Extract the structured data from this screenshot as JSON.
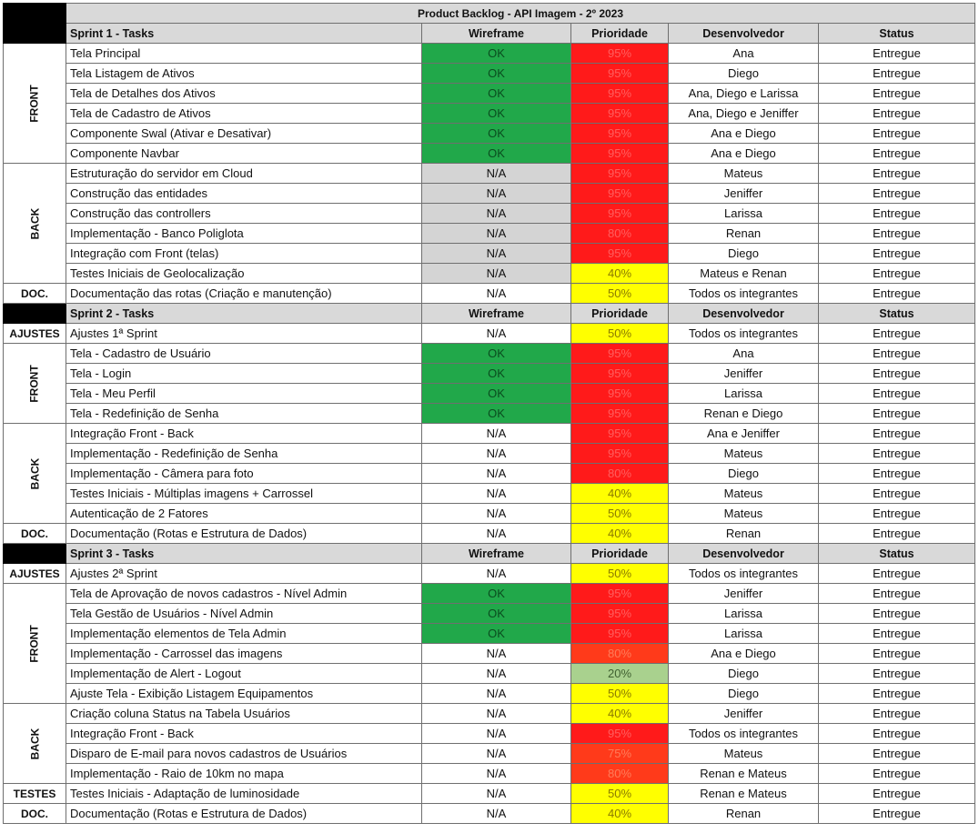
{
  "title": "Product Backlog - API Imagem - 2º 2023",
  "columns": {
    "wireframe": "Wireframe",
    "prioridade": "Prioridade",
    "desenvolvedor": "Desenvolvedor",
    "status": "Status"
  },
  "colors": {
    "ok_green": "#21a84a",
    "na_gray": "#d4d4d4",
    "priority_red": "#ff1a1a",
    "priority_orange": "#ff3a1a",
    "priority_yellow": "#ffff00",
    "priority_lightgreen": "#a9d18e"
  },
  "sprints": [
    {
      "label": "Sprint 1 - Tasks",
      "sections": [
        {
          "name": "FRONT",
          "rows": [
            {
              "task": "Tela Principal",
              "wireframe": "OK",
              "prioridade": "95%",
              "desenvolvedor": "Ana",
              "status": "Entregue"
            },
            {
              "task": "Tela Listagem de Ativos",
              "wireframe": "OK",
              "prioridade": "95%",
              "desenvolvedor": "Diego",
              "status": "Entregue"
            },
            {
              "task": "Tela de Detalhes dos Ativos",
              "wireframe": "OK",
              "prioridade": "95%",
              "desenvolvedor": "Ana, Diego e Larissa",
              "status": "Entregue"
            },
            {
              "task": "Tela de Cadastro de Ativos",
              "wireframe": "OK",
              "prioridade": "95%",
              "desenvolvedor": "Ana, Diego e Jeniffer",
              "status": "Entregue"
            },
            {
              "task": "Componente Swal (Ativar e Desativar)",
              "wireframe": "OK",
              "prioridade": "95%",
              "desenvolvedor": "Ana e Diego",
              "status": "Entregue"
            },
            {
              "task": "Componente Navbar",
              "wireframe": "OK",
              "prioridade": "95%",
              "desenvolvedor": "Ana e Diego",
              "status": "Entregue"
            }
          ]
        },
        {
          "name": "BACK",
          "rows": [
            {
              "task": "Estruturação do servidor em Cloud",
              "wireframe": "N/A",
              "prioridade": "95%",
              "desenvolvedor": "Mateus",
              "status": "Entregue"
            },
            {
              "task": "Construção das entidades",
              "wireframe": "N/A",
              "prioridade": "95%",
              "desenvolvedor": "Jeniffer",
              "status": "Entregue"
            },
            {
              "task": "Construção das controllers",
              "wireframe": "N/A",
              "prioridade": "95%",
              "desenvolvedor": "Larissa",
              "status": "Entregue"
            },
            {
              "task": "Implementação - Banco Poliglota",
              "wireframe": "N/A",
              "prioridade": "80%",
              "desenvolvedor": "Renan",
              "status": "Entregue"
            },
            {
              "task": "Integração com Front (telas)",
              "wireframe": "N/A",
              "prioridade": "95%",
              "desenvolvedor": "Diego",
              "status": "Entregue"
            },
            {
              "task": "Testes Iniciais de Geolocalização",
              "wireframe": "N/A",
              "prioridade": "40%",
              "desenvolvedor": "Mateus e Renan",
              "status": "Entregue"
            }
          ]
        },
        {
          "name": "DOC.",
          "rows": [
            {
              "task": "Documentação das rotas (Criação e manutenção)",
              "wireframe": "N/A",
              "prioridade": "50%",
              "desenvolvedor": "Todos os integrantes",
              "status": "Entregue"
            }
          ]
        }
      ]
    },
    {
      "label": "Sprint 2 - Tasks",
      "sections": [
        {
          "name": "AJUSTES",
          "rows": [
            {
              "task": "Ajustes 1ª Sprint",
              "wireframe": "N/A",
              "prioridade": "50%",
              "desenvolvedor": "Todos os integrantes",
              "status": "Entregue"
            }
          ]
        },
        {
          "name": "FRONT",
          "rows": [
            {
              "task": "Tela - Cadastro de Usuário",
              "wireframe": "OK",
              "prioridade": "95%",
              "desenvolvedor": "Ana",
              "status": "Entregue"
            },
            {
              "task": "Tela - Login",
              "wireframe": "OK",
              "prioridade": "95%",
              "desenvolvedor": "Jeniffer",
              "status": "Entregue"
            },
            {
              "task": "Tela - Meu Perfil",
              "wireframe": "OK",
              "prioridade": "95%",
              "desenvolvedor": "Larissa",
              "status": "Entregue"
            },
            {
              "task": "Tela - Redefinição de Senha",
              "wireframe": "OK",
              "prioridade": "95%",
              "desenvolvedor": "Renan e Diego",
              "status": "Entregue"
            }
          ]
        },
        {
          "name": "BACK",
          "rows": [
            {
              "task": "Integração Front  - Back",
              "wireframe": "N/A",
              "prioridade": "95%",
              "desenvolvedor": "Ana e Jeniffer",
              "status": "Entregue"
            },
            {
              "task": "Implementação - Redefinição de Senha",
              "wireframe": "N/A",
              "prioridade": "95%",
              "desenvolvedor": "Mateus",
              "status": "Entregue"
            },
            {
              "task": "Implementação - Câmera para foto",
              "wireframe": "N/A",
              "prioridade": "80%",
              "desenvolvedor": "Diego",
              "status": "Entregue"
            },
            {
              "task": "Testes Iniciais  - Múltiplas imagens + Carrossel",
              "wireframe": "N/A",
              "prioridade": "40%",
              "desenvolvedor": "Mateus",
              "status": "Entregue"
            },
            {
              "task": "Autenticação de 2 Fatores",
              "wireframe": "N/A",
              "prioridade": "50%",
              "desenvolvedor": "Mateus",
              "status": "Entregue"
            }
          ]
        },
        {
          "name": "DOC.",
          "rows": [
            {
              "task": "Documentação (Rotas e Estrutura de Dados)",
              "wireframe": "N/A",
              "prioridade": "40%",
              "desenvolvedor": "Renan",
              "status": "Entregue"
            }
          ]
        }
      ]
    },
    {
      "label": "Sprint 3 - Tasks",
      "sections": [
        {
          "name": "AJUSTES",
          "rows": [
            {
              "task": "Ajustes 2ª Sprint",
              "wireframe": "N/A",
              "prioridade": "50%",
              "desenvolvedor": "Todos os integrantes",
              "status": "Entregue"
            }
          ]
        },
        {
          "name": "FRONT",
          "rows": [
            {
              "task": "Tela de Aprovação de novos cadastros - Nível Admin",
              "wireframe": "OK",
              "prioridade": "95%",
              "desenvolvedor": "Jeniffer",
              "status": "Entregue"
            },
            {
              "task": "Tela Gestão de Usuários - Nível Admin",
              "wireframe": "OK",
              "prioridade": "95%",
              "desenvolvedor": "Larissa",
              "status": "Entregue"
            },
            {
              "task": "Implementação elementos de Tela Admin",
              "wireframe": "OK",
              "prioridade": "95%",
              "desenvolvedor": "Larissa",
              "status": "Entregue"
            },
            {
              "task": "Implementação - Carrossel das imagens",
              "wireframe": "N/A",
              "prioridade": "80%",
              "desenvolvedor": "Ana e Diego",
              "status": "Entregue"
            },
            {
              "task": "Implementação de Alert - Logout",
              "wireframe": "N/A",
              "prioridade": "20%",
              "desenvolvedor": "Diego",
              "status": "Entregue"
            },
            {
              "task": "Ajuste Tela - Exibição Listagem Equipamentos",
              "wireframe": "N/A",
              "prioridade": "50%",
              "desenvolvedor": "Diego",
              "status": "Entregue"
            }
          ]
        },
        {
          "name": "BACK",
          "rows": [
            {
              "task": "Criação coluna Status na Tabela Usuários",
              "wireframe": "N/A",
              "prioridade": "40%",
              "desenvolvedor": "Jeniffer",
              "status": "Entregue"
            },
            {
              "task": "Integração Front - Back",
              "wireframe": "N/A",
              "prioridade": "95%",
              "desenvolvedor": "Todos os integrantes",
              "status": "Entregue"
            },
            {
              "task": "Disparo de E-mail para novos cadastros de Usuários",
              "wireframe": "N/A",
              "prioridade": "75%",
              "desenvolvedor": "Mateus",
              "status": "Entregue"
            },
            {
              "task": "Implementação - Raio de 10km no mapa",
              "wireframe": "N/A",
              "prioridade": "80%",
              "desenvolvedor": "Renan e Mateus",
              "status": "Entregue"
            }
          ]
        },
        {
          "name": "TESTES",
          "rows": [
            {
              "task": "Testes Iniciais - Adaptação de luminosidade",
              "wireframe": "N/A",
              "prioridade": "50%",
              "desenvolvedor": "Renan e Mateus",
              "status": "Entregue"
            }
          ]
        },
        {
          "name": "DOC.",
          "rows": [
            {
              "task": "Documentação (Rotas e Estrutura de Dados)",
              "wireframe": "N/A",
              "prioridade": "40%",
              "desenvolvedor": "Renan",
              "status": "Entregue"
            }
          ]
        }
      ]
    }
  ]
}
